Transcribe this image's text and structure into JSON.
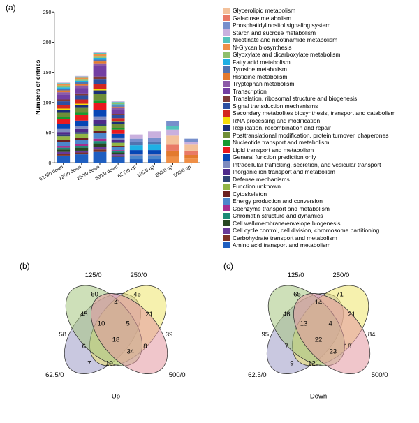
{
  "panel_labels": {
    "a": "(a)",
    "b": "(b)",
    "c": "(c)"
  },
  "chart": {
    "type": "stacked-bar",
    "ylabel": "Numbers of entries",
    "label_fontsize": 10,
    "ylim": [
      0,
      250
    ],
    "ytick_step": 50,
    "background_color": "#ffffff",
    "axis_color": "#000000",
    "bar_width": 0.72,
    "categories": [
      "62.5/0 down",
      "125/0 down",
      "250/0 down",
      "500/0 down",
      "62.5/0 up",
      "125/0 up",
      "250/0 up",
      "500/0 up"
    ],
    "legend_items": [
      {
        "label": "Glycerolipid metabolism",
        "color": "#f3c19b"
      },
      {
        "label": "Galactose metabolism",
        "color": "#e97a67"
      },
      {
        "label": "Phosphatidylinositol signaling system",
        "color": "#778fcc"
      },
      {
        "label": "Starch and sucrose metabolism",
        "color": "#c9b0de"
      },
      {
        "label": "Nicotinate and nicotinamide metabolism",
        "color": "#54c2bb"
      },
      {
        "label": "N-Glycan biosynthesis",
        "color": "#ef8f47"
      },
      {
        "label": "Glyoxylate and dicarboxylate metabolism",
        "color": "#8fbf6b"
      },
      {
        "label": "Fatty acid metabolism",
        "color": "#1fb0e4"
      },
      {
        "label": "Tyrosine metabolism",
        "color": "#5274b0"
      },
      {
        "label": "Histidine metabolism",
        "color": "#e37a2f"
      },
      {
        "label": "Tryptophan metabolism",
        "color": "#8b5aa8"
      },
      {
        "label": "Transcription",
        "color": "#733fa3"
      },
      {
        "label": "Translation, ribosomal structure and biogenesis",
        "color": "#7f3b38"
      },
      {
        "label": "Signal transduction mechanisms",
        "color": "#2d4fa0"
      },
      {
        "label": "Secondary metabolites biosynthesis, transport and catabolism",
        "color": "#d32621"
      },
      {
        "label": "RNA processing and modification",
        "color": "#f4dc0c"
      },
      {
        "label": "Replication, recombination and repair",
        "color": "#1b2f78"
      },
      {
        "label": "Posttranslational modification, protein turnover, chaperones",
        "color": "#6f8e38"
      },
      {
        "label": "Nucleotide transport and metabolism",
        "color": "#179a2f"
      },
      {
        "label": "Lipid transport and metabolism",
        "color": "#e9191e"
      },
      {
        "label": "General function prediction only",
        "color": "#0646b5"
      },
      {
        "label": "Intracellular trafficking, secretion, and vesicular transport",
        "color": "#7e8bbf"
      },
      {
        "label": "Inorganic ion transport and metabolism",
        "color": "#4e2a8a"
      },
      {
        "label": "Defense mechanisms",
        "color": "#2f4474"
      },
      {
        "label": "Function unknown",
        "color": "#92b545"
      },
      {
        "label": "Cytoskeleton",
        "color": "#6a1f1f"
      },
      {
        "label": "Energy production and conversion",
        "color": "#4c86cb"
      },
      {
        "label": "Coenzyme transport and metabolism",
        "color": "#a62e8f"
      },
      {
        "label": "Chromatin structure and dynamics",
        "color": "#1b8a77"
      },
      {
        "label": "Cell wall/membrane/envelope biogenesis",
        "color": "#274722"
      },
      {
        "label": "Cell cycle control, cell division, chromosome partitioning",
        "color": "#683a99"
      },
      {
        "label": "Carbohydrate transport and metabolism",
        "color": "#7c3125"
      },
      {
        "label": "Amino acid transport and metabolism",
        "color": "#1f5fc0"
      }
    ],
    "bars": [
      {
        "cat": "62.5/0 down",
        "segments": [
          {
            "c": "#1f5fc0",
            "v": 12
          },
          {
            "c": "#7c3125",
            "v": 3
          },
          {
            "c": "#683a99",
            "v": 3
          },
          {
            "c": "#274722",
            "v": 4
          },
          {
            "c": "#1b8a77",
            "v": 3
          },
          {
            "c": "#a62e8f",
            "v": 3
          },
          {
            "c": "#4c86cb",
            "v": 7
          },
          {
            "c": "#6a1f1f",
            "v": 3
          },
          {
            "c": "#92b545",
            "v": 6
          },
          {
            "c": "#2f4474",
            "v": 3
          },
          {
            "c": "#4e2a8a",
            "v": 4
          },
          {
            "c": "#7e8bbf",
            "v": 5
          },
          {
            "c": "#0646b5",
            "v": 8
          },
          {
            "c": "#e9191e",
            "v": 8
          },
          {
            "c": "#179a2f",
            "v": 4
          },
          {
            "c": "#6f8e38",
            "v": 7
          },
          {
            "c": "#1b2f78",
            "v": 5
          },
          {
            "c": "#f4dc0c",
            "v": 2
          },
          {
            "c": "#d32621",
            "v": 6
          },
          {
            "c": "#2d4fa0",
            "v": 6
          },
          {
            "c": "#7f3b38",
            "v": 3
          },
          {
            "c": "#733fa3",
            "v": 8
          },
          {
            "c": "#8b5aa8",
            "v": 4
          },
          {
            "c": "#e37a2f",
            "v": 3
          },
          {
            "c": "#5274b0",
            "v": 3
          },
          {
            "c": "#1fb0e4",
            "v": 2
          },
          {
            "c": "#8fbf6b",
            "v": 3
          },
          {
            "c": "#ef8f47",
            "v": 2
          },
          {
            "c": "#54c2bb",
            "v": 2
          },
          {
            "c": "#c9b0de",
            "v": 1
          }
        ]
      },
      {
        "cat": "125/0 down",
        "segments": [
          {
            "c": "#1f5fc0",
            "v": 14
          },
          {
            "c": "#7c3125",
            "v": 3
          },
          {
            "c": "#683a99",
            "v": 3
          },
          {
            "c": "#274722",
            "v": 5
          },
          {
            "c": "#1b8a77",
            "v": 3
          },
          {
            "c": "#a62e8f",
            "v": 3
          },
          {
            "c": "#4c86cb",
            "v": 7
          },
          {
            "c": "#6a1f1f",
            "v": 3
          },
          {
            "c": "#92b545",
            "v": 7
          },
          {
            "c": "#2f4474",
            "v": 3
          },
          {
            "c": "#4e2a8a",
            "v": 5
          },
          {
            "c": "#7e8bbf",
            "v": 5
          },
          {
            "c": "#0646b5",
            "v": 9
          },
          {
            "c": "#e9191e",
            "v": 9
          },
          {
            "c": "#179a2f",
            "v": 4
          },
          {
            "c": "#6f8e38",
            "v": 8
          },
          {
            "c": "#1b2f78",
            "v": 5
          },
          {
            "c": "#f4dc0c",
            "v": 2
          },
          {
            "c": "#d32621",
            "v": 7
          },
          {
            "c": "#2d4fa0",
            "v": 7
          },
          {
            "c": "#7f3b38",
            "v": 3
          },
          {
            "c": "#733fa3",
            "v": 9
          },
          {
            "c": "#8b5aa8",
            "v": 4
          },
          {
            "c": "#e37a2f",
            "v": 3
          },
          {
            "c": "#5274b0",
            "v": 3
          },
          {
            "c": "#1fb0e4",
            "v": 2
          },
          {
            "c": "#8fbf6b",
            "v": 3
          },
          {
            "c": "#ef8f47",
            "v": 2
          },
          {
            "c": "#54c2bb",
            "v": 2
          },
          {
            "c": "#c9b0de",
            "v": 1
          }
        ]
      },
      {
        "cat": "250/0 down",
        "segments": [
          {
            "c": "#1f5fc0",
            "v": 18
          },
          {
            "c": "#7c3125",
            "v": 4
          },
          {
            "c": "#683a99",
            "v": 4
          },
          {
            "c": "#274722",
            "v": 6
          },
          {
            "c": "#1b8a77",
            "v": 4
          },
          {
            "c": "#a62e8f",
            "v": 4
          },
          {
            "c": "#4c86cb",
            "v": 9
          },
          {
            "c": "#6a1f1f",
            "v": 4
          },
          {
            "c": "#92b545",
            "v": 8
          },
          {
            "c": "#2f4474",
            "v": 4
          },
          {
            "c": "#4e2a8a",
            "v": 6
          },
          {
            "c": "#7e8bbf",
            "v": 6
          },
          {
            "c": "#0646b5",
            "v": 11
          },
          {
            "c": "#e9191e",
            "v": 11
          },
          {
            "c": "#179a2f",
            "v": 5
          },
          {
            "c": "#6f8e38",
            "v": 10
          },
          {
            "c": "#1b2f78",
            "v": 6
          },
          {
            "c": "#f4dc0c",
            "v": 2
          },
          {
            "c": "#d32621",
            "v": 9
          },
          {
            "c": "#2d4fa0",
            "v": 8
          },
          {
            "c": "#7f3b38",
            "v": 4
          },
          {
            "c": "#733fa3",
            "v": 18
          },
          {
            "c": "#8b5aa8",
            "v": 4
          },
          {
            "c": "#e37a2f",
            "v": 3
          },
          {
            "c": "#5274b0",
            "v": 3
          },
          {
            "c": "#1fb0e4",
            "v": 3
          },
          {
            "c": "#8fbf6b",
            "v": 3
          },
          {
            "c": "#ef8f47",
            "v": 3
          },
          {
            "c": "#54c2bb",
            "v": 2
          },
          {
            "c": "#c9b0de",
            "v": 2
          }
        ]
      },
      {
        "cat": "500/0 down",
        "segments": [
          {
            "c": "#1f5fc0",
            "v": 10
          },
          {
            "c": "#7c3125",
            "v": 2
          },
          {
            "c": "#683a99",
            "v": 2
          },
          {
            "c": "#274722",
            "v": 3
          },
          {
            "c": "#1b8a77",
            "v": 2
          },
          {
            "c": "#a62e8f",
            "v": 2
          },
          {
            "c": "#4c86cb",
            "v": 5
          },
          {
            "c": "#6a1f1f",
            "v": 2
          },
          {
            "c": "#92b545",
            "v": 5
          },
          {
            "c": "#2f4474",
            "v": 2
          },
          {
            "c": "#4e2a8a",
            "v": 3
          },
          {
            "c": "#7e8bbf",
            "v": 4
          },
          {
            "c": "#0646b5",
            "v": 6
          },
          {
            "c": "#e9191e",
            "v": 7
          },
          {
            "c": "#179a2f",
            "v": 3
          },
          {
            "c": "#6f8e38",
            "v": 6
          },
          {
            "c": "#1b2f78",
            "v": 4
          },
          {
            "c": "#f4dc0c",
            "v": 1
          },
          {
            "c": "#d32621",
            "v": 5
          },
          {
            "c": "#2d4fa0",
            "v": 5
          },
          {
            "c": "#7f3b38",
            "v": 2
          },
          {
            "c": "#733fa3",
            "v": 7
          },
          {
            "c": "#8b5aa8",
            "v": 3
          },
          {
            "c": "#e37a2f",
            "v": 2
          },
          {
            "c": "#5274b0",
            "v": 2
          },
          {
            "c": "#1fb0e4",
            "v": 2
          },
          {
            "c": "#8fbf6b",
            "v": 2
          },
          {
            "c": "#ef8f47",
            "v": 1
          },
          {
            "c": "#54c2bb",
            "v": 1
          },
          {
            "c": "#c9b0de",
            "v": 1
          }
        ]
      },
      {
        "cat": "62.5/0 up",
        "segments": [
          {
            "c": "#1f5fc0",
            "v": 6
          },
          {
            "c": "#4c86cb",
            "v": 5
          },
          {
            "c": "#7e8bbf",
            "v": 4
          },
          {
            "c": "#0646b5",
            "v": 6
          },
          {
            "c": "#1fb0e4",
            "v": 8
          },
          {
            "c": "#5274b0",
            "v": 5
          },
          {
            "c": "#778fcc",
            "v": 6
          },
          {
            "c": "#c9b0de",
            "v": 7
          }
        ]
      },
      {
        "cat": "125/0 up",
        "segments": [
          {
            "c": "#1f5fc0",
            "v": 6
          },
          {
            "c": "#4c86cb",
            "v": 5
          },
          {
            "c": "#7e8bbf",
            "v": 4
          },
          {
            "c": "#0646b5",
            "v": 6
          },
          {
            "c": "#1fb0e4",
            "v": 9
          },
          {
            "c": "#5274b0",
            "v": 5
          },
          {
            "c": "#778fcc",
            "v": 7
          },
          {
            "c": "#c9b0de",
            "v": 10
          }
        ]
      },
      {
        "cat": "250/0 up",
        "segments": [
          {
            "c": "#ef8f47",
            "v": 10
          },
          {
            "c": "#e37a2f",
            "v": 10
          },
          {
            "c": "#e97a67",
            "v": 10
          },
          {
            "c": "#f3c19b",
            "v": 15
          },
          {
            "c": "#c9b0de",
            "v": 10
          },
          {
            "c": "#54c2bb",
            "v": 6
          },
          {
            "c": "#778fcc",
            "v": 8
          }
        ]
      },
      {
        "cat": "500/0 up",
        "segments": [
          {
            "c": "#ef8f47",
            "v": 7
          },
          {
            "c": "#e37a2f",
            "v": 6
          },
          {
            "c": "#e97a67",
            "v": 7
          },
          {
            "c": "#f3c19b",
            "v": 10
          },
          {
            "c": "#c9b0de",
            "v": 5
          },
          {
            "c": "#778fcc",
            "v": 5
          }
        ]
      }
    ]
  },
  "venn_b": {
    "title": "Up",
    "sets": [
      {
        "label": "125/0",
        "color": "#efe66b"
      },
      {
        "label": "250/0",
        "color": "#a6c780"
      },
      {
        "label": "62.5/0",
        "color": "#9c9bc6"
      },
      {
        "label": "500/0",
        "color": "#e497a0"
      }
    ],
    "values": {
      "only62": "58",
      "only125": "60",
      "only250": "45",
      "only500": "39",
      "i_62_125": "45",
      "i_250_500": "21",
      "i_62_500": "7",
      "i_125_250": "4",
      "i_62_250": "6",
      "i_125_500": "8",
      "i_62_125_250": "10",
      "i_125_250_500": "5",
      "i_62_125_500": "10",
      "i_62_250_500": "34",
      "center": "18"
    }
  },
  "venn_c": {
    "title": "Down",
    "sets": [
      {
        "label": "125/0",
        "color": "#efe66b"
      },
      {
        "label": "250/0",
        "color": "#a6c780"
      },
      {
        "label": "62.5/0",
        "color": "#9c9bc6"
      },
      {
        "label": "500/0",
        "color": "#e497a0"
      }
    ],
    "values": {
      "only62": "95",
      "only125": "65",
      "only250": "71",
      "only500": "84",
      "i_62_125": "46",
      "i_250_500": "21",
      "i_62_500": "9",
      "i_125_250": "14",
      "i_62_250": "7",
      "i_125_500": "18",
      "i_62_125_250": "13",
      "i_125_250_500": "4",
      "i_62_125_500": "12",
      "i_62_250_500": "23",
      "center": "22"
    }
  }
}
